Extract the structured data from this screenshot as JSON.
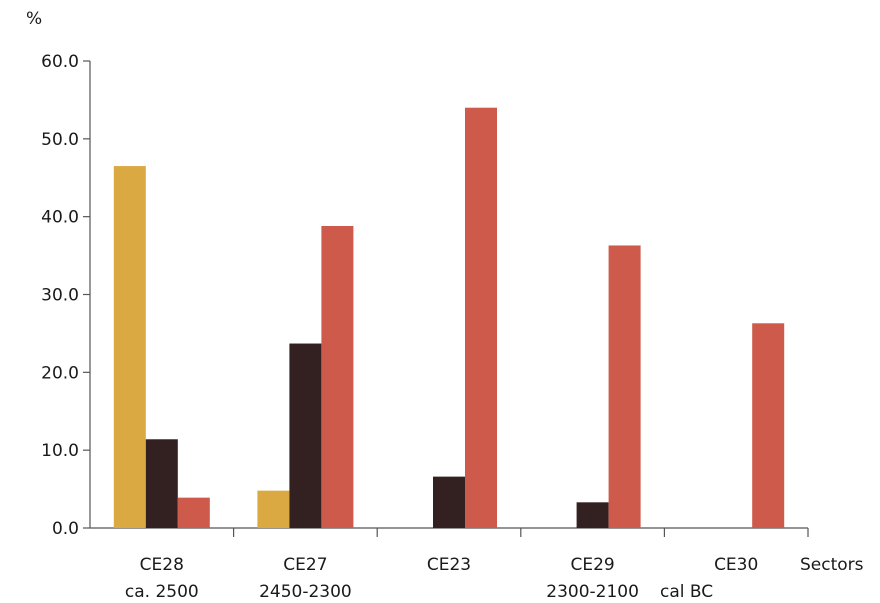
{
  "chart_data": {
    "type": "bar",
    "title": "",
    "ylabel": "%",
    "xlabel": "Sectors",
    "ylim": [
      0,
      60
    ],
    "yticks": [
      "0.0",
      "10.0",
      "20.0",
      "30.0",
      "40.0",
      "50.0",
      "60.0"
    ],
    "categories": [
      {
        "name": "CE28",
        "sub": "ca. 2500"
      },
      {
        "name": "CE27",
        "sub": "2450-2300"
      },
      {
        "name": "CE23",
        "sub": ""
      },
      {
        "name": "CE29",
        "sub": "2300-2100"
      },
      {
        "name": "CE30",
        "sub": ""
      }
    ],
    "unit_label": "cal BC",
    "series": [
      {
        "color": "#DBA942",
        "values": [
          46.5,
          4.8,
          0,
          0,
          0
        ]
      },
      {
        "color": "#332020",
        "values": [
          11.4,
          23.7,
          6.6,
          3.3,
          0
        ]
      },
      {
        "color": "#CD5A4A",
        "values": [
          3.9,
          38.8,
          54.0,
          36.3,
          26.3
        ]
      }
    ],
    "grid": false,
    "legend": "none"
  }
}
